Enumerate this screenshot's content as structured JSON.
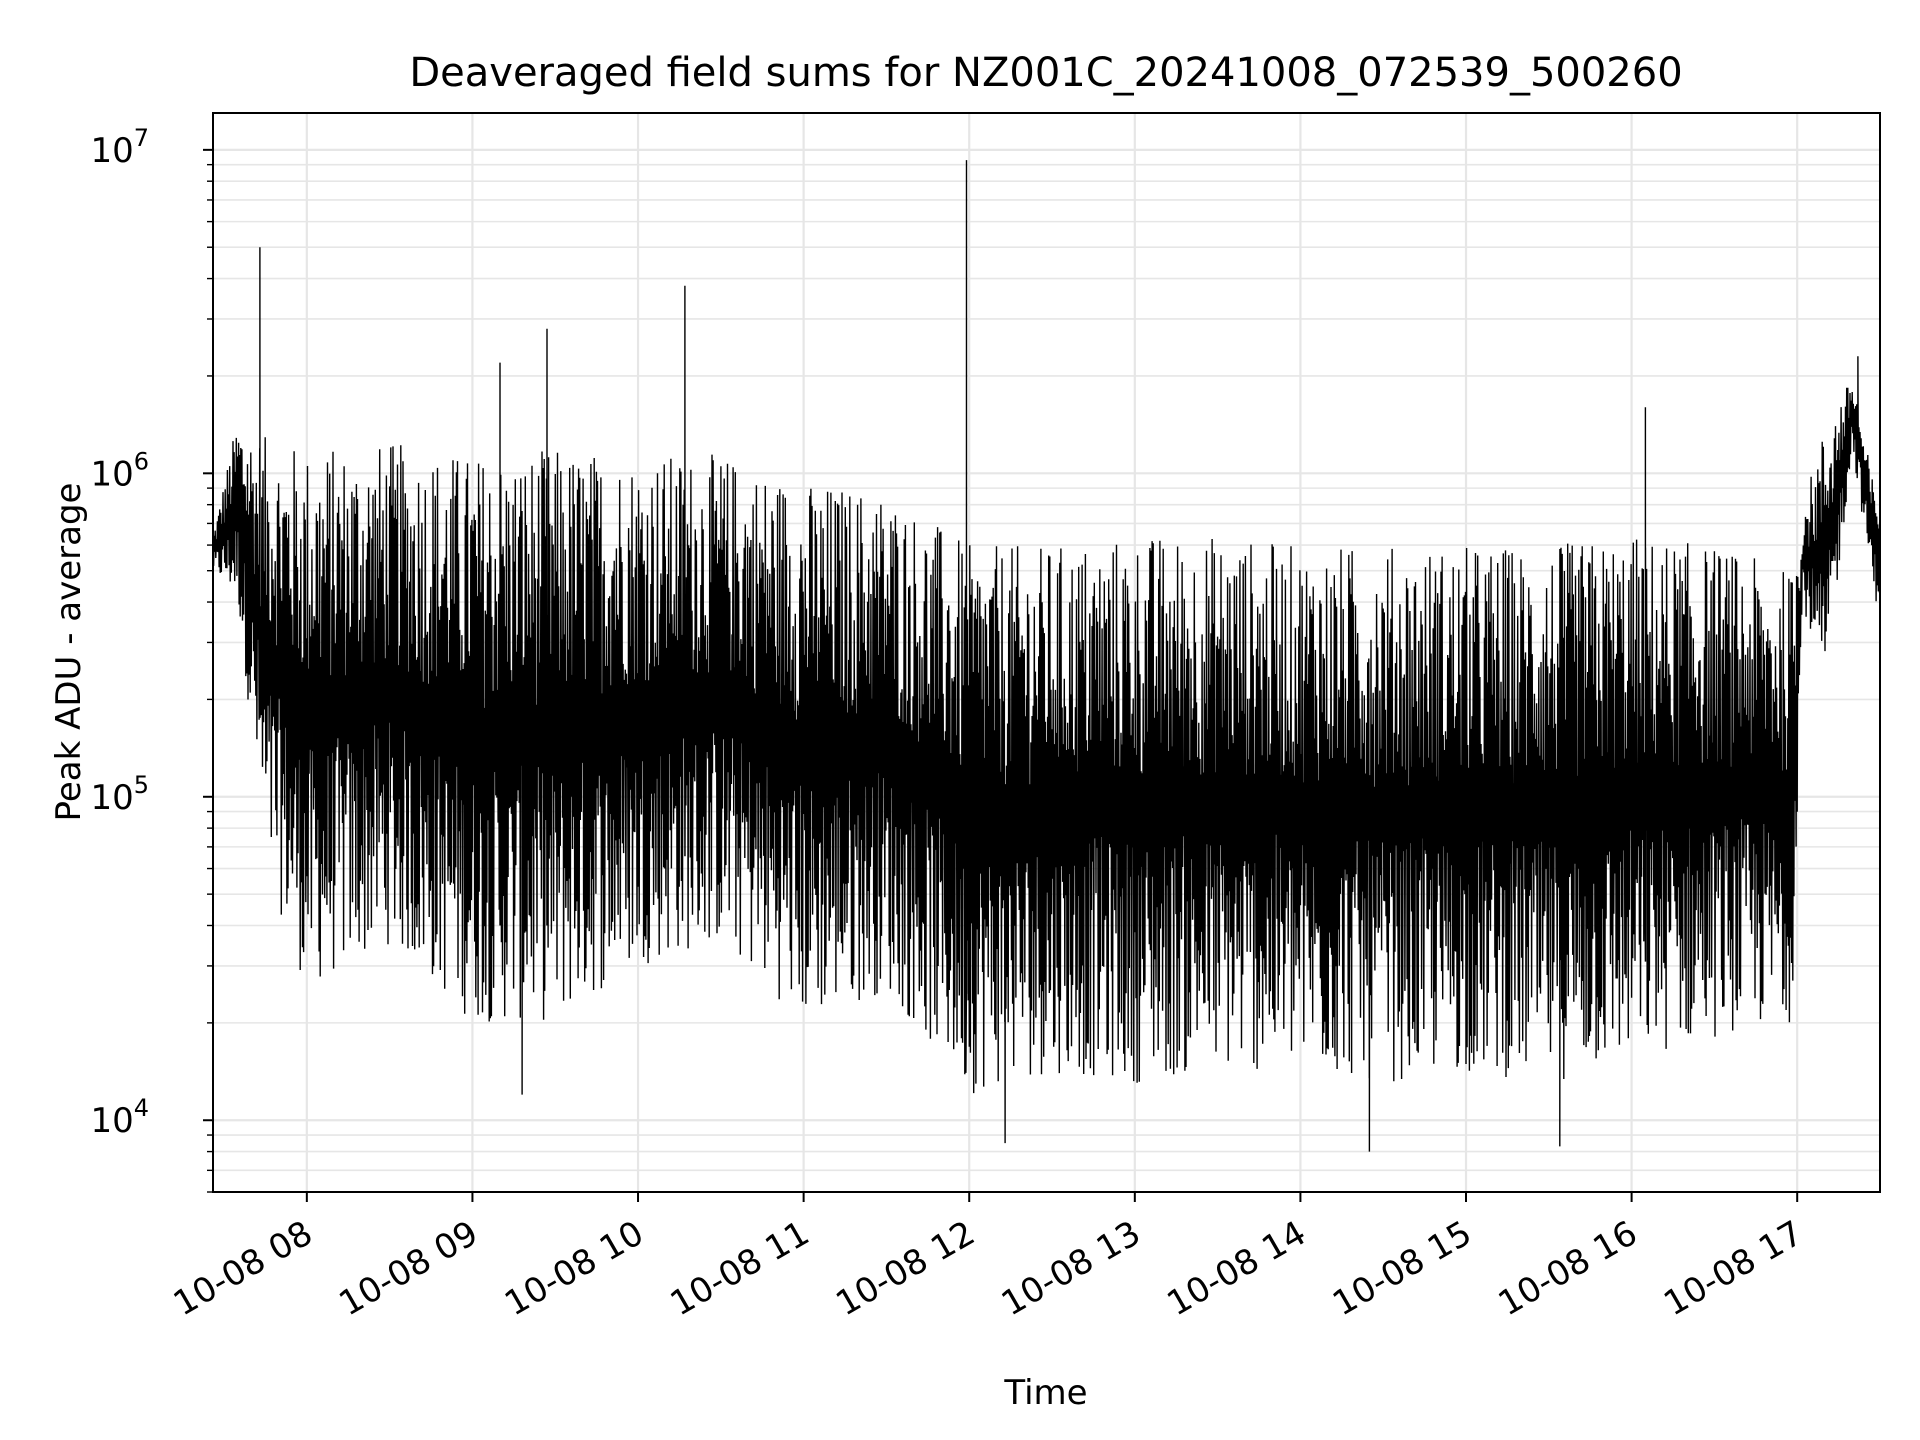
{
  "chart_data": {
    "type": "line",
    "title": "Deaveraged field sums for NZ001C_20241008_072539_500260",
    "xlabel": "Time",
    "ylabel": "Peak ADU - average",
    "yscale": "log",
    "ylim": [
      6000,
      13000000
    ],
    "xlim": [
      "2024-10-08 07:26",
      "2024-10-08 17:30"
    ],
    "grid": true,
    "line_color": "#000000",
    "x_ticks": [
      {
        "label": "10-08 08",
        "value": "2024-10-08 08:00"
      },
      {
        "label": "10-08 09",
        "value": "2024-10-08 09:00"
      },
      {
        "label": "10-08 10",
        "value": "2024-10-08 10:00"
      },
      {
        "label": "10-08 11",
        "value": "2024-10-08 11:00"
      },
      {
        "label": "10-08 12",
        "value": "2024-10-08 12:00"
      },
      {
        "label": "10-08 13",
        "value": "2024-10-08 13:00"
      },
      {
        "label": "10-08 14",
        "value": "2024-10-08 14:00"
      },
      {
        "label": "10-08 15",
        "value": "2024-10-08 15:00"
      },
      {
        "label": "10-08 16",
        "value": "2024-10-08 16:00"
      },
      {
        "label": "10-08 17",
        "value": "2024-10-08 17:00"
      }
    ],
    "y_ticks": [
      {
        "base": "10",
        "exp": "4",
        "value": 10000
      },
      {
        "base": "10",
        "exp": "5",
        "value": 100000
      },
      {
        "base": "10",
        "exp": "6",
        "value": 1000000
      },
      {
        "base": "10",
        "exp": "7",
        "value": 10000000
      }
    ],
    "series_envelope": {
      "note_points": [
        {
          "x": "2024-10-08 07:26",
          "low": 500000,
          "high": 650000
        },
        {
          "x": "2024-10-08 07:35",
          "low": 400000,
          "high": 1500000
        },
        {
          "x": "2024-10-08 07:45",
          "low": 60000,
          "high": 1300000
        },
        {
          "x": "2024-10-08 08:00",
          "low": 25000,
          "high": 1200000
        },
        {
          "x": "2024-10-08 08:30",
          "low": 35000,
          "high": 1250000
        },
        {
          "x": "2024-10-08 09:00",
          "low": 20000,
          "high": 1150000
        },
        {
          "x": "2024-10-08 09:30",
          "low": 20000,
          "high": 1200000
        },
        {
          "x": "2024-10-08 10:00",
          "low": 30000,
          "high": 1150000
        },
        {
          "x": "2024-10-08 10:30",
          "low": 35000,
          "high": 1150000
        },
        {
          "x": "2024-10-08 11:00",
          "low": 20000,
          "high": 950000
        },
        {
          "x": "2024-10-08 11:30",
          "low": 25000,
          "high": 900000
        },
        {
          "x": "2024-10-08 12:00",
          "low": 12000,
          "high": 600000
        },
        {
          "x": "2024-10-08 12:30",
          "low": 14000,
          "high": 600000
        },
        {
          "x": "2024-10-08 13:00",
          "low": 13000,
          "high": 650000
        },
        {
          "x": "2024-10-08 13:30",
          "low": 14000,
          "high": 650000
        },
        {
          "x": "2024-10-08 14:00",
          "low": 14000,
          "high": 600000
        },
        {
          "x": "2024-10-08 14:30",
          "low": 13000,
          "high": 600000
        },
        {
          "x": "2024-10-08 15:00",
          "low": 14000,
          "high": 600000
        },
        {
          "x": "2024-10-08 15:30",
          "low": 13000,
          "high": 600000
        },
        {
          "x": "2024-10-08 16:00",
          "low": 15000,
          "high": 650000
        },
        {
          "x": "2024-10-08 16:30",
          "low": 18000,
          "high": 600000
        },
        {
          "x": "2024-10-08 16:58",
          "low": 20000,
          "high": 500000
        },
        {
          "x": "2024-10-08 17:02",
          "low": 400000,
          "high": 800000
        },
        {
          "x": "2024-10-08 17:10",
          "low": 200000,
          "high": 1400000
        },
        {
          "x": "2024-10-08 17:20",
          "low": 1200000,
          "high": 2000000
        },
        {
          "x": "2024-10-08 17:28",
          "low": 400000,
          "high": 900000
        }
      ],
      "spikes": [
        {
          "x": "2024-10-08 07:43",
          "value": 5000000
        },
        {
          "x": "2024-10-08 09:10",
          "value": 2200000
        },
        {
          "x": "2024-10-08 09:27",
          "value": 2800000
        },
        {
          "x": "2024-10-08 10:17",
          "value": 3800000
        },
        {
          "x": "2024-10-08 11:59",
          "value": 9300000
        },
        {
          "x": "2024-10-08 16:05",
          "value": 1600000
        },
        {
          "x": "2024-10-08 17:22",
          "value": 2300000
        }
      ],
      "dips": [
        {
          "x": "2024-10-08 09:18",
          "value": 12000
        },
        {
          "x": "2024-10-08 12:13",
          "value": 8500
        },
        {
          "x": "2024-10-08 14:25",
          "value": 8000
        },
        {
          "x": "2024-10-08 15:34",
          "value": 8300
        }
      ]
    }
  }
}
